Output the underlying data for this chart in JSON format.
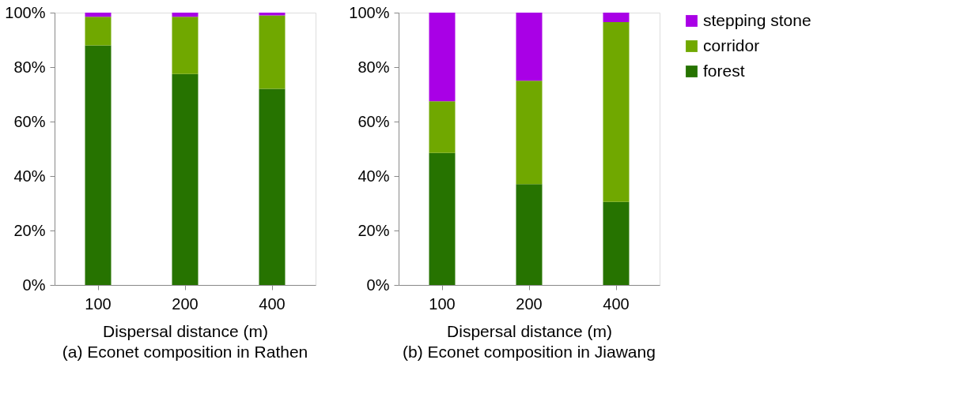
{
  "chart_data": [
    {
      "type": "bar",
      "stacked": true,
      "title": "(a) Econet composition in Rathen",
      "xlabel": "Dispersal distance (m)",
      "categories": [
        "100",
        "200",
        "400"
      ],
      "series": [
        {
          "color": "#267300",
          "values": [
            88,
            77.5,
            72
          ]
        },
        {
          "color": "#70a800",
          "values": [
            10.5,
            21,
            27
          ]
        },
        {
          "color": "#a900e6",
          "values": [
            1.5,
            1.5,
            1
          ]
        }
      ],
      "ylim": [
        0,
        100
      ],
      "yticks": [
        {
          "value": 0,
          "label": "0%"
        },
        {
          "value": 20,
          "label": "20%"
        },
        {
          "value": 40,
          "label": "40%"
        },
        {
          "value": 60,
          "label": "60%"
        },
        {
          "value": 80,
          "label": "80%"
        },
        {
          "value": 100,
          "label": "100%"
        }
      ],
      "grid": false
    },
    {
      "type": "bar",
      "stacked": true,
      "title": "(b) Econet composition in Jiawang",
      "xlabel": "Dispersal distance (m)",
      "categories": [
        "100",
        "200",
        "400"
      ],
      "series": [
        {
          "name": "forest",
          "color": "#267300",
          "values": [
            48.5,
            37,
            30.5
          ]
        },
        {
          "name": "corridor",
          "color": "#70a800",
          "values": [
            19,
            38,
            66
          ]
        },
        {
          "name": "stepping stone",
          "color": "#a900e6",
          "values": [
            32.5,
            25,
            3.5
          ]
        }
      ],
      "ylim": [
        0,
        100
      ],
      "yticks": [
        {
          "value": 0,
          "label": "0%"
        },
        {
          "value": 20,
          "label": "20%"
        },
        {
          "value": 40,
          "label": "40%"
        },
        {
          "value": 60,
          "label": "60%"
        },
        {
          "value": 80,
          "label": "80%"
        },
        {
          "value": 100,
          "label": "100%"
        }
      ],
      "grid": false,
      "legend": "right"
    }
  ]
}
